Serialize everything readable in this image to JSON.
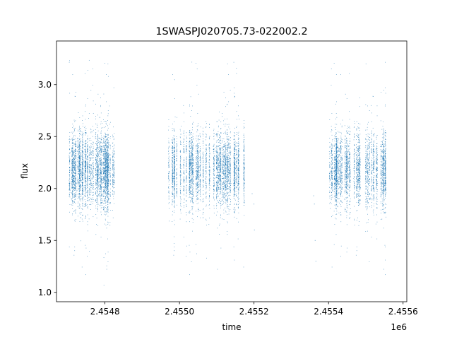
{
  "chart_data": {
    "type": "scatter",
    "title": "1SWASPJ020705.73-022002.2",
    "xlabel": "time",
    "ylabel": "flux",
    "x_offset_label": "1e6",
    "xlim": [
      2454670,
      2455610
    ],
    "ylim": [
      0.91,
      3.42
    ],
    "x_ticks": [
      2454800,
      2455000,
      2455200,
      2455400,
      2455600
    ],
    "x_tick_labels": [
      "2.4548",
      "2.4550",
      "2.4552",
      "2.4554",
      "2.4556"
    ],
    "y_ticks": [
      1.0,
      1.5,
      2.0,
      2.5,
      3.0
    ],
    "y_tick_labels": [
      "1.0",
      "1.5",
      "2.0",
      "2.5",
      "3.0"
    ],
    "grid": false,
    "legend": "none",
    "marker_color": "#1f77b4",
    "series": [
      {
        "segments": [
          {
            "x_range": [
              2454690,
              2454825
            ],
            "n": 3800,
            "center": 2.18,
            "spread": 0.17,
            "outlier_spread": 0.55
          },
          {
            "x_range": [
              2454970,
              2455175
            ],
            "n": 4200,
            "center": 2.18,
            "spread": 0.17,
            "outlier_spread": 0.55
          },
          {
            "x_range": [
              2455400,
              2455555
            ],
            "n": 3300,
            "center": 2.18,
            "spread": 0.17,
            "outlier_spread": 0.55
          }
        ],
        "sparse_points": [
          {
            "x": 2455195,
            "y": 1.95
          },
          {
            "x": 2455200,
            "y": 1.85
          },
          {
            "x": 2455201,
            "y": 1.6
          },
          {
            "x": 2455360,
            "y": 1.93
          },
          {
            "x": 2455362,
            "y": 1.85
          },
          {
            "x": 2455364,
            "y": 1.5
          },
          {
            "x": 2455366,
            "y": 1.3
          }
        ]
      }
    ]
  }
}
